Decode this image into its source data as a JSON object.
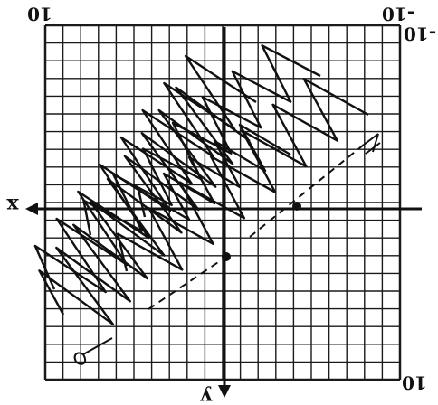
{
  "graph": {
    "grid_min": -10,
    "grid_max": 10,
    "orientation": "image is rotated 180 degrees (upside down)",
    "axis_labels": {
      "x": "x",
      "y": "y"
    },
    "tick_labels": {
      "top_left": "10",
      "top_right": "-10",
      "top_right_extra": "-10",
      "bottom_right": "10"
    }
  },
  "colors": {
    "ink": "#111111",
    "grid": "#1a1a1a",
    "paper": "#ffffff"
  }
}
